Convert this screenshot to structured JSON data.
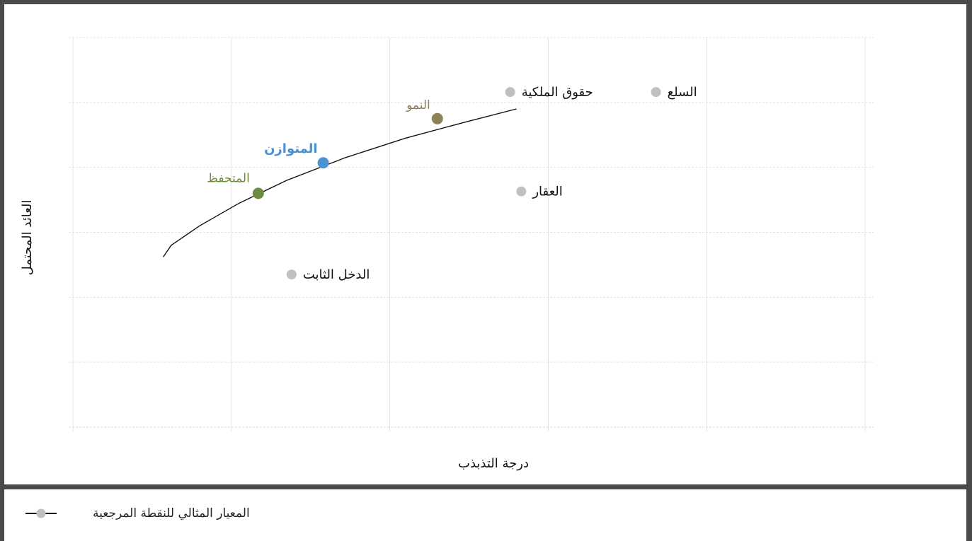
{
  "chart_data": {
    "type": "scatter",
    "title": "",
    "xlabel": "درجة التذبذب",
    "ylabel": "العائد المحتمل",
    "xlim": [
      0,
      5
    ],
    "ylim": [
      0,
      6
    ],
    "grid": true,
    "legend_placement": "bottom",
    "frontier_curve": {
      "x": [
        0.57,
        0.62,
        0.8,
        1.05,
        1.35,
        1.72,
        2.1,
        2.48,
        2.8
      ],
      "y": [
        2.62,
        2.8,
        3.1,
        3.45,
        3.8,
        4.15,
        4.45,
        4.7,
        4.9
      ]
    },
    "portfolios": [
      {
        "name": "المتحفظ",
        "x": 1.17,
        "y": 3.6,
        "color": "#6e8c3f"
      },
      {
        "name": "المتوازن",
        "x": 1.58,
        "y": 4.07,
        "color": "#4a90d2"
      },
      {
        "name": "النمو",
        "x": 2.3,
        "y": 4.75,
        "color": "#8c8158"
      }
    ],
    "benchmarks": [
      {
        "name": "الدخل الثابت",
        "x": 1.38,
        "y": 2.35,
        "color": "#c0c0c0"
      },
      {
        "name": "العقار",
        "x": 2.83,
        "y": 3.63,
        "color": "#c0c0c0"
      },
      {
        "name": "حقوق الملكية",
        "x": 2.76,
        "y": 5.16,
        "color": "#c0c0c0"
      },
      {
        "name": "السلع",
        "x": 3.68,
        "y": 5.16,
        "color": "#c0c0c0"
      }
    ],
    "legend": [
      {
        "label": "المعيار المثالي للنقطة المرجعية",
        "color": "#c0c0c0"
      }
    ]
  }
}
